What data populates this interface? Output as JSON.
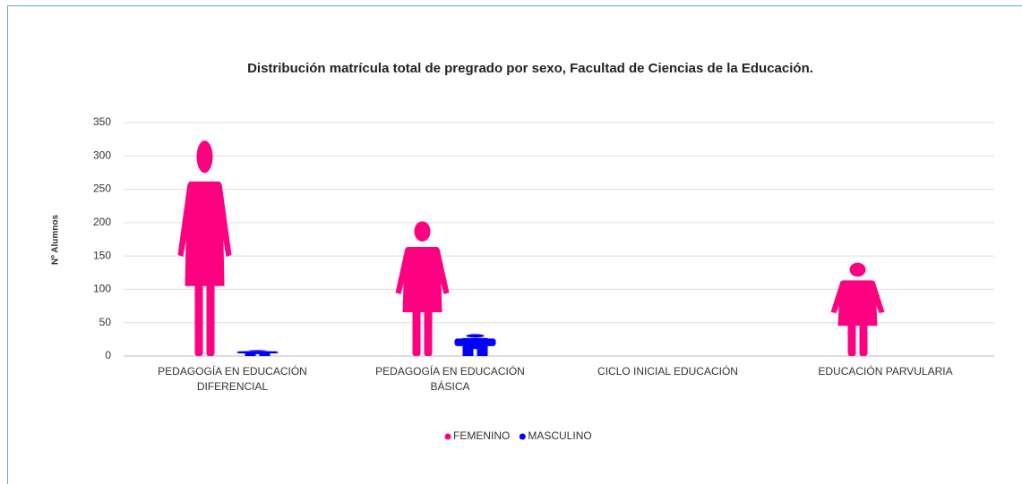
{
  "chart_data": {
    "type": "pictograph",
    "title": "Distribución matrícula total de pregrado por sexo, Facultad de Ciencias de la Educación.",
    "y_label": "Nº Alumnos",
    "categories": [
      "PEDAGOGÍA EN EDUCACIÓN DIFERENCIAL",
      "PEDAGOGÍA EN EDUCACIÓN BÁSICA",
      "CICLO INICIAL EDUCACIÓN",
      "EDUCACIÓN PARVULARIA"
    ],
    "series": [
      {
        "name": "FEMENINO",
        "color": "#ff0080",
        "values": [
          323,
          202,
          null,
          140
        ]
      },
      {
        "name": "MASCULINO",
        "color": "#0000ff",
        "values": [
          9,
          33,
          null,
          null
        ]
      }
    ],
    "ylim": [
      0,
      350
    ],
    "yticks": [
      0,
      50,
      100,
      150,
      200,
      250,
      300,
      350
    ],
    "grid": true,
    "legend": "bottom"
  }
}
